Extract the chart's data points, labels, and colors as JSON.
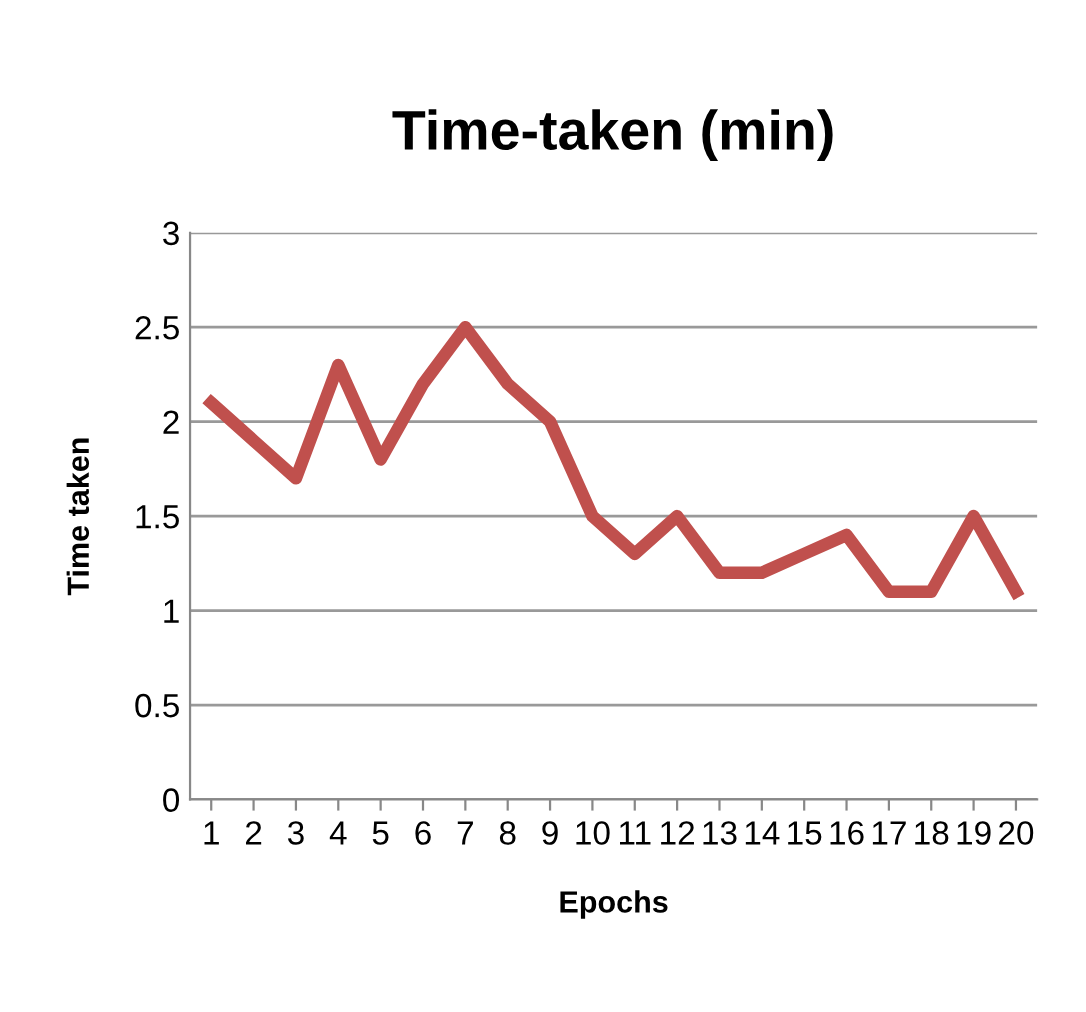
{
  "chart_data": {
    "type": "line",
    "title": "Time-taken (min)",
    "xlabel": "Epochs",
    "ylabel": "Time taken",
    "categories": [
      "1",
      "2",
      "3",
      "4",
      "5",
      "6",
      "7",
      "8",
      "9",
      "10",
      "11",
      "12",
      "13",
      "14",
      "15",
      "16",
      "17",
      "18",
      "19",
      "20"
    ],
    "series": [
      {
        "color": "#c0504d",
        "values": [
          2.1,
          1.9,
          1.7,
          2.3,
          1.8,
          2.2,
          2.5,
          2.2,
          2.0,
          1.5,
          1.3,
          1.5,
          1.2,
          1.2,
          1.3,
          1.4,
          1.1,
          1.1,
          1.5,
          1.1
        ]
      }
    ],
    "ylim": [
      0,
      3
    ],
    "yticks": [
      0,
      0.5,
      1,
      1.5,
      2,
      2.5,
      3
    ],
    "grid": "y",
    "marker": "none",
    "line_style": "solid"
  }
}
